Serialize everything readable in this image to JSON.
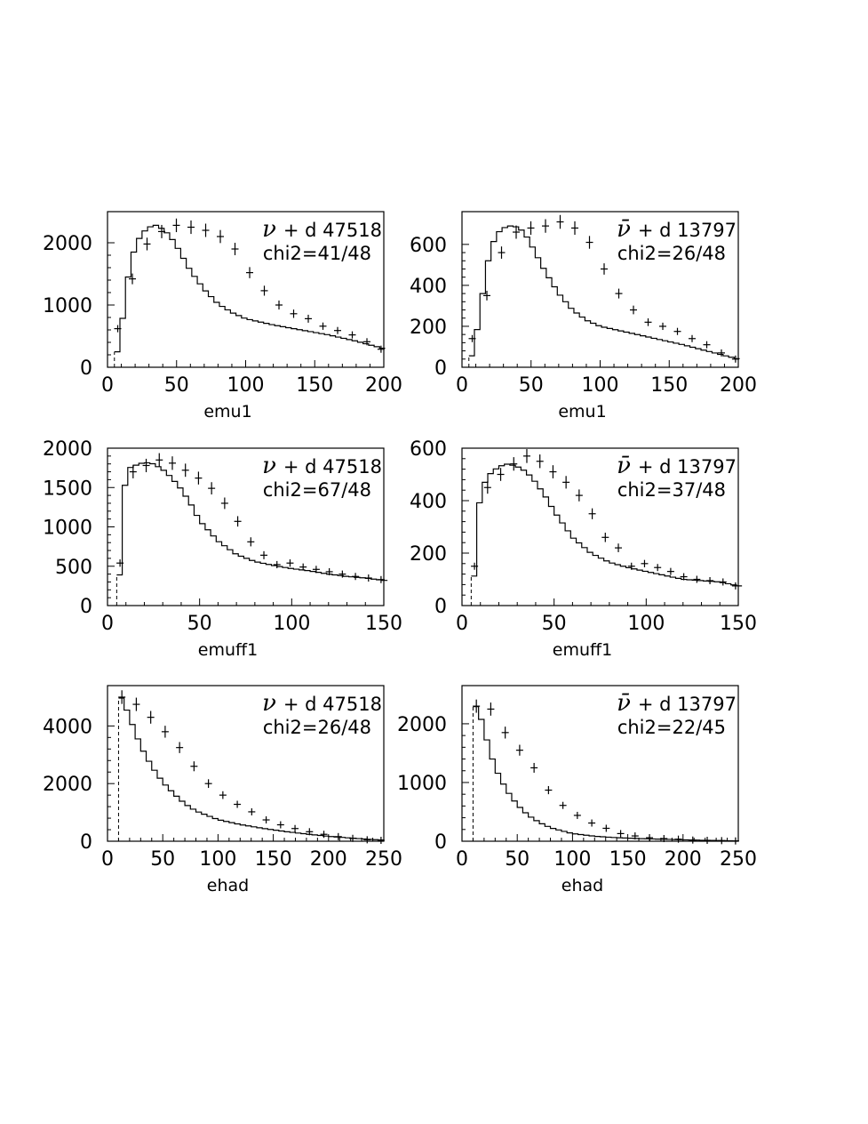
{
  "chart_data": [
    {
      "id": "nu-emu1",
      "type": "histogram",
      "xlabel": "emu1",
      "xlim": [
        0,
        200
      ],
      "ylim": [
        0,
        2500
      ],
      "xticks": [
        0,
        50,
        100,
        150,
        200
      ],
      "yticks": [
        0,
        1000,
        2000
      ],
      "grid": false,
      "annotation": {
        "particle": "ν",
        "text": "+ d 47518",
        "chi2": "chi2=41/48"
      },
      "x": [
        0,
        5,
        10,
        15,
        20,
        25,
        30,
        35,
        40,
        45,
        50,
        60,
        70,
        80,
        90,
        100,
        120,
        140,
        160,
        180,
        200
      ],
      "curve": [
        0,
        0,
        620,
        1450,
        1950,
        2150,
        2250,
        2280,
        2220,
        2120,
        1950,
        1550,
        1250,
        1020,
        880,
        780,
        680,
        600,
        520,
        420,
        300
      ],
      "points": [
        620,
        1420,
        1980,
        2180,
        2280,
        2250,
        2200,
        2100,
        1900,
        1520,
        1230,
        1000,
        860,
        780,
        660,
        590,
        520,
        410,
        290
      ]
    },
    {
      "id": "nubar-emu1",
      "type": "histogram",
      "xlabel": "emu1",
      "xlim": [
        0,
        200
      ],
      "ylim": [
        0,
        760
      ],
      "xticks": [
        0,
        50,
        100,
        150,
        200
      ],
      "yticks": [
        0,
        200,
        400,
        600
      ],
      "grid": false,
      "annotation": {
        "particle": "ν̄",
        "text": "+ d 13797",
        "chi2": "chi2=26/48"
      },
      "x": [
        0,
        5,
        10,
        15,
        20,
        25,
        30,
        35,
        40,
        45,
        50,
        60,
        70,
        80,
        90,
        100,
        120,
        140,
        160,
        180,
        200
      ],
      "curve": [
        0,
        0,
        140,
        360,
        560,
        650,
        680,
        690,
        685,
        660,
        600,
        470,
        360,
        280,
        230,
        200,
        170,
        140,
        110,
        75,
        40
      ],
      "points": [
        140,
        350,
        560,
        660,
        680,
        690,
        710,
        680,
        610,
        480,
        360,
        280,
        220,
        200,
        175,
        140,
        110,
        70,
        40
      ]
    },
    {
      "id": "nu-emuff1",
      "type": "histogram",
      "xlabel": "emuff1",
      "xlim": [
        0,
        150
      ],
      "ylim": [
        0,
        2000
      ],
      "xticks": [
        0,
        50,
        100,
        150
      ],
      "yticks": [
        0,
        500,
        1000,
        1500,
        2000
      ],
      "grid": false,
      "annotation": {
        "particle": "ν",
        "text": "+ d 47518",
        "chi2": "chi2=67/48"
      },
      "x": [
        0,
        5,
        7,
        10,
        15,
        20,
        25,
        30,
        35,
        40,
        45,
        50,
        60,
        70,
        80,
        90,
        100,
        110,
        120,
        130,
        140,
        150
      ],
      "curve": [
        0,
        0,
        520,
        1730,
        1780,
        1820,
        1800,
        1730,
        1620,
        1480,
        1300,
        1080,
        820,
        650,
        560,
        510,
        470,
        440,
        400,
        370,
        350,
        320
      ],
      "points": [
        540,
        1700,
        1780,
        1850,
        1810,
        1720,
        1620,
        1490,
        1300,
        1070,
        810,
        640,
        520,
        540,
        490,
        460,
        430,
        400,
        370,
        350,
        330
      ]
    },
    {
      "id": "nubar-emuff1",
      "type": "histogram",
      "xlabel": "emuff1",
      "xlim": [
        0,
        150
      ],
      "ylim": [
        0,
        600
      ],
      "xticks": [
        0,
        50,
        100,
        150
      ],
      "yticks": [
        0,
        200,
        400,
        600
      ],
      "grid": false,
      "annotation": {
        "particle": "ν̄",
        "text": "+ d 13797",
        "chi2": "chi2=37/48"
      },
      "x": [
        0,
        5,
        7,
        10,
        15,
        20,
        25,
        30,
        35,
        40,
        45,
        50,
        60,
        70,
        80,
        90,
        100,
        110,
        120,
        130,
        140,
        150
      ],
      "curve": [
        0,
        0,
        150,
        440,
        500,
        530,
        540,
        530,
        510,
        470,
        420,
        360,
        260,
        200,
        165,
        145,
        130,
        115,
        100,
        95,
        90,
        75
      ],
      "points": [
        150,
        450,
        500,
        540,
        570,
        550,
        510,
        470,
        420,
        350,
        260,
        220,
        150,
        160,
        145,
        130,
        110,
        100,
        95,
        90,
        75
      ]
    },
    {
      "id": "nu-ehad",
      "type": "histogram",
      "xlabel": "ehad",
      "xlim": [
        0,
        250
      ],
      "ylim": [
        0,
        5400
      ],
      "xticks": [
        0,
        50,
        100,
        150,
        200,
        250
      ],
      "yticks": [
        0,
        2000,
        4000
      ],
      "grid": false,
      "annotation": {
        "particle": "ν",
        "text": "+ d 47518",
        "chi2": "chi2=26/48"
      },
      "x": [
        0,
        10,
        12,
        15,
        20,
        25,
        30,
        40,
        50,
        60,
        70,
        80,
        100,
        120,
        140,
        160,
        180,
        200,
        220,
        240,
        250
      ],
      "curve": [
        0,
        0,
        5000,
        4800,
        4300,
        3800,
        3300,
        2600,
        2050,
        1650,
        1300,
        1050,
        750,
        580,
        450,
        340,
        250,
        170,
        110,
        60,
        40
      ],
      "points": [
        5000,
        4750,
        4300,
        3800,
        3250,
        2600,
        2000,
        1600,
        1280,
        1020,
        740,
        570,
        440,
        330,
        240,
        160,
        100,
        50,
        30
      ]
    },
    {
      "id": "nubar-ehad",
      "type": "histogram",
      "xlabel": "ehad",
      "xlim": [
        0,
        250
      ],
      "ylim": [
        0,
        2650
      ],
      "xticks": [
        0,
        50,
        100,
        150,
        200,
        250
      ],
      "yticks": [
        0,
        1000,
        2000
      ],
      "grid": false,
      "annotation": {
        "particle": "ν̄",
        "text": "+ d 13797",
        "chi2": "chi2=22/45"
      },
      "x": [
        0,
        10,
        12,
        15,
        20,
        25,
        30,
        40,
        50,
        60,
        70,
        80,
        100,
        120,
        140,
        160,
        180,
        200,
        220,
        240,
        250
      ],
      "curve": [
        0,
        0,
        2300,
        2250,
        1900,
        1550,
        1250,
        880,
        620,
        440,
        320,
        230,
        130,
        85,
        60,
        45,
        35,
        25,
        15,
        10,
        5
      ],
      "points": [
        2300,
        2250,
        1850,
        1550,
        1250,
        870,
        610,
        440,
        310,
        220,
        130,
        90,
        60,
        45,
        35,
        20,
        15,
        10,
        5
      ]
    }
  ]
}
